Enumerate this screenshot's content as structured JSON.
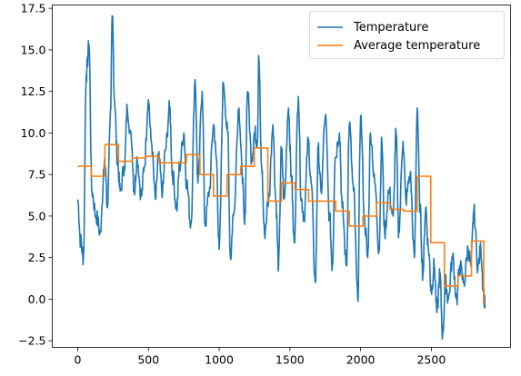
{
  "chart_data": {
    "type": "line",
    "xlim": [
      -180,
      3060
    ],
    "ylim": [
      -2.9,
      17.7
    ],
    "x_ticks": [
      0,
      500,
      1000,
      1500,
      2000,
      2500
    ],
    "y_ticks": [
      -2.5,
      0.0,
      2.5,
      5.0,
      7.5,
      10.0,
      12.5,
      15.0,
      17.5
    ],
    "x_tick_labels": [
      "0",
      "500",
      "1000",
      "1500",
      "2000",
      "2500"
    ],
    "y_tick_labels": [
      "−2.5",
      "0.0",
      "2.5",
      "5.0",
      "7.5",
      "10.0",
      "12.5",
      "15.0",
      "17.5"
    ],
    "grid": false,
    "legend_position": "top-right",
    "series": [
      {
        "name": "Temperature",
        "color": "#1f77b4",
        "x": [
          0,
          20,
          40,
          60,
          80,
          100,
          130,
          160,
          190,
          210,
          230,
          245,
          260,
          280,
          300,
          330,
          350,
          380,
          400,
          420,
          450,
          470,
          500,
          520,
          550,
          570,
          600,
          620,
          650,
          670,
          700,
          720,
          750,
          770,
          800,
          830,
          850,
          880,
          900,
          930,
          960,
          980,
          1000,
          1030,
          1060,
          1080,
          1100,
          1140,
          1160,
          1180,
          1200,
          1230,
          1250,
          1270,
          1280,
          1300,
          1320,
          1350,
          1380,
          1400,
          1420,
          1440,
          1460,
          1490,
          1510,
          1530,
          1560,
          1580,
          1600,
          1630,
          1650,
          1680,
          1700,
          1720,
          1750,
          1780,
          1800,
          1820,
          1850,
          1870,
          1900,
          1920,
          1950,
          1980,
          2000,
          2030,
          2050,
          2070,
          2100,
          2130,
          2150,
          2170,
          2200,
          2230,
          2250,
          2270,
          2300,
          2320,
          2350,
          2380,
          2400,
          2420,
          2440,
          2460,
          2480,
          2500,
          2520,
          2540,
          2560,
          2580,
          2600,
          2620,
          2650,
          2680,
          2700,
          2730,
          2760,
          2780,
          2800,
          2830,
          2850,
          2870,
          2880
        ],
        "y": [
          6.0,
          3.5,
          2.5,
          13.5,
          15.3,
          6.5,
          5.0,
          4.0,
          8.5,
          5.5,
          11.0,
          16.8,
          12.0,
          8.5,
          6.5,
          8.0,
          11.5,
          9.5,
          6.5,
          8.5,
          6.2,
          8.0,
          12.0,
          9.5,
          6.0,
          8.5,
          6.5,
          9.0,
          11.5,
          7.5,
          5.5,
          8.0,
          10.0,
          7.0,
          4.5,
          13.2,
          7.0,
          12.5,
          4.5,
          6.5,
          10.5,
          8.5,
          3.0,
          13.0,
          10.0,
          2.5,
          5.0,
          11.5,
          8.0,
          4.5,
          12.5,
          8.5,
          10.0,
          9.5,
          14.5,
          8.0,
          4.0,
          6.0,
          10.5,
          6.0,
          2.0,
          9.0,
          6.0,
          11.5,
          7.5,
          3.5,
          12.2,
          6.0,
          5.0,
          9.5,
          7.0,
          1.0,
          9.0,
          6.5,
          11.0,
          5.0,
          2.0,
          8.5,
          10.0,
          5.5,
          2.0,
          10.5,
          6.5,
          0.0,
          11.0,
          4.5,
          2.5,
          10.0,
          7.0,
          3.0,
          9.5,
          4.0,
          6.5,
          5.0,
          10.0,
          4.0,
          9.5,
          6.0,
          7.5,
          2.5,
          11.5,
          5.5,
          1.5,
          5.5,
          3.0,
          0.5,
          2.0,
          -0.8,
          1.5,
          -2.1,
          1.0,
          0.0,
          2.5,
          0.0,
          2.0,
          1.0,
          3.0,
          2.0,
          5.3,
          2.0,
          3.0,
          0.3,
          -0.4
        ],
        "smooth": true
      },
      {
        "name": "Average temperature",
        "color": "#ff7f0e",
        "type": "step",
        "x": [
          0,
          96,
          96,
          192,
          192,
          288,
          288,
          384,
          384,
          480,
          480,
          576,
          576,
          672,
          672,
          768,
          768,
          864,
          864,
          960,
          960,
          1056,
          1056,
          1152,
          1152,
          1248,
          1248,
          1344,
          1344,
          1440,
          1440,
          1536,
          1536,
          1632,
          1632,
          1728,
          1728,
          1824,
          1824,
          1920,
          1920,
          2016,
          2016,
          2112,
          2112,
          2208,
          2208,
          2304,
          2304,
          2400,
          2400,
          2496,
          2496,
          2592,
          2592,
          2688,
          2688,
          2784,
          2784,
          2870,
          2870
        ],
        "y": [
          8.0,
          8.0,
          7.4,
          7.4,
          9.3,
          9.3,
          8.3,
          8.3,
          8.5,
          8.5,
          8.6,
          8.6,
          8.2,
          8.2,
          8.2,
          8.2,
          8.7,
          8.7,
          7.5,
          7.5,
          6.2,
          6.2,
          7.5,
          7.5,
          8.0,
          8.0,
          9.1,
          9.1,
          5.9,
          5.9,
          7.0,
          7.0,
          6.6,
          6.6,
          5.9,
          5.9,
          5.9,
          5.9,
          5.3,
          5.3,
          4.4,
          4.4,
          5.0,
          5.0,
          5.8,
          5.8,
          5.4,
          5.4,
          5.3,
          5.3,
          7.4,
          7.4,
          3.4,
          3.4,
          0.8,
          0.8,
          1.4,
          1.4,
          3.5,
          3.5,
          -0.3
        ]
      }
    ]
  }
}
